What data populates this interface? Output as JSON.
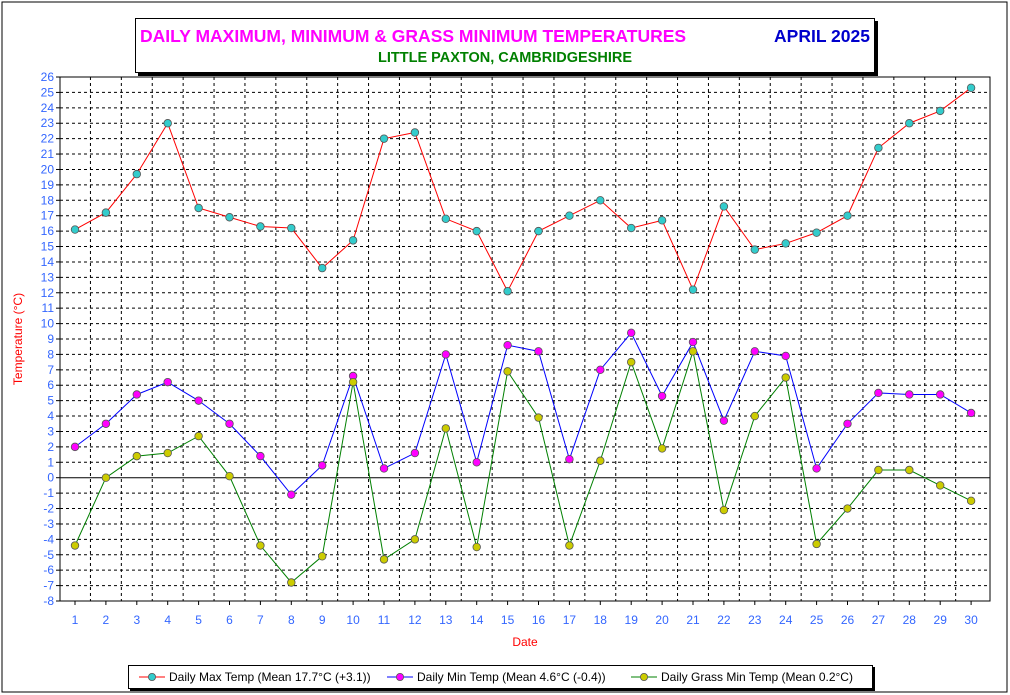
{
  "title": "DAILY MAXIMUM, MINIMUM & GRASS MINIMUM TEMPERATURES",
  "month": "APRIL 2025",
  "subtitle": "LITTLE PAXTON, CAMBRIDGESHIRE",
  "chart_data": {
    "type": "line",
    "xlabel": "Date",
    "ylabel": "Temperature (°C)",
    "ylim": [
      -8,
      26
    ],
    "xlim": [
      1,
      30
    ],
    "grid": true,
    "legend_position": "bottom",
    "x": [
      1,
      2,
      3,
      4,
      5,
      6,
      7,
      8,
      9,
      10,
      11,
      12,
      13,
      14,
      15,
      16,
      17,
      18,
      19,
      20,
      21,
      22,
      23,
      24,
      25,
      26,
      27,
      28,
      29,
      30
    ],
    "series": [
      {
        "name": "Daily Max Temp (Mean 17.7°C (+3.1))",
        "line_color": "#ff0000",
        "marker_color": "#33cccc",
        "values": [
          16.1,
          17.2,
          19.7,
          23.0,
          17.5,
          16.9,
          16.3,
          16.2,
          13.6,
          15.4,
          22.0,
          22.4,
          16.8,
          16.0,
          12.1,
          16.0,
          17.0,
          18.0,
          16.2,
          16.7,
          12.2,
          17.6,
          14.8,
          15.2,
          15.9,
          17.0,
          21.4,
          23.0,
          23.8,
          25.3
        ]
      },
      {
        "name": "Daily Min Temp (Mean 4.6°C (-0.4))",
        "line_color": "#0000ff",
        "marker_color": "#ff00ff",
        "values": [
          2.0,
          3.5,
          5.4,
          6.2,
          5.0,
          3.5,
          1.4,
          -1.1,
          0.8,
          6.6,
          0.6,
          1.6,
          8.0,
          1.0,
          8.6,
          8.2,
          1.2,
          7.0,
          9.4,
          5.3,
          8.8,
          3.7,
          8.2,
          7.9,
          0.6,
          3.5,
          5.5,
          5.4,
          5.4,
          4.2
        ]
      },
      {
        "name": "Daily Grass Min Temp (Mean 0.2°C)",
        "line_color": "#008000",
        "marker_color": "#cccc00",
        "values": [
          -4.4,
          0.0,
          1.4,
          1.6,
          2.7,
          0.1,
          -4.4,
          -6.8,
          -5.1,
          6.2,
          -5.3,
          -4.0,
          3.2,
          -4.5,
          6.9,
          3.9,
          -4.4,
          1.1,
          7.5,
          1.9,
          8.2,
          -2.1,
          4.0,
          6.5,
          -4.3,
          -2.0,
          0.5,
          0.5,
          -0.5,
          -1.5
        ]
      }
    ],
    "colors": {
      "axis_tick_labels": "#3366ff",
      "axis_title": "#ff0000",
      "title": "#ff00ff",
      "month": "#0000cc",
      "subtitle": "#008000"
    }
  }
}
